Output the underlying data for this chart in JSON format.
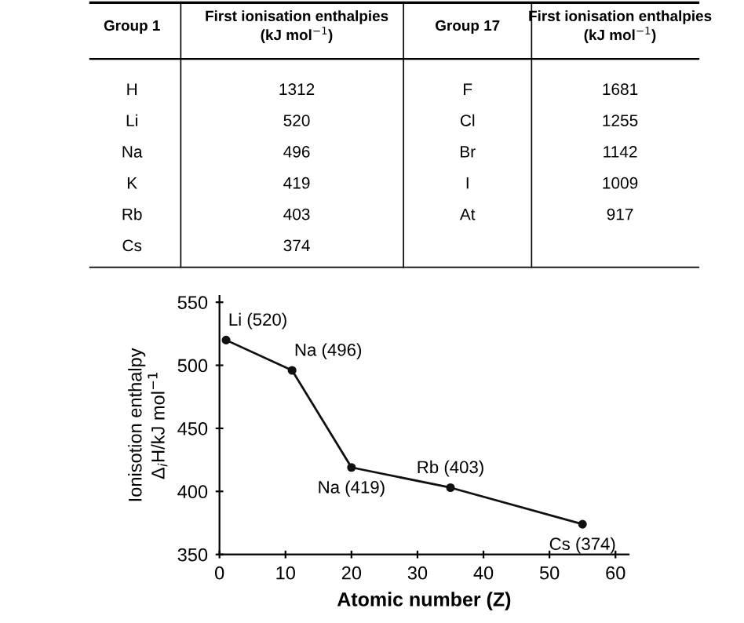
{
  "chart_data": [
    {
      "type": "other",
      "categories": [
        "Group 1",
        "First ionisation enthalpies\n(kJ mol$^{−1}$)",
        "Group 17",
        "First ionisation enthalpies\n(kJ mol$^{−1}$)"
      ],
      "annotations": [
        "H",
        "1312",
        "F",
        "1681",
        "Li",
        "520",
        "Cl",
        "1255",
        "Na",
        "496",
        "Br",
        "1142",
        "K",
        "419",
        "I",
        "1009",
        "Rb",
        "403",
        "At",
        "917",
        "Cs",
        "374"
      ]
    },
    {
      "type": "line",
      "xlabel": "Atomic number (Z)",
      "ylabel": "Ionisotion enthalpy\nΔ$_{i}$H/kJ mol$^{−1}$",
      "x": [
        1,
        11,
        20,
        35,
        55
      ],
      "series": [
        {
          "color": "#111111",
          "values": [
            520,
            496,
            419,
            403,
            374
          ],
          "value_labels": [
            "Li (520)",
            "Na (496)",
            "Na (419)",
            "Rb (403)",
            "Cs (374)"
          ]
        }
      ],
      "xlim": [
        0,
        62
      ],
      "ylim": [
        350,
        555
      ],
      "xticks": [
        0,
        10,
        20,
        30,
        40,
        50,
        60
      ],
      "yticks": [
        350,
        400,
        450,
        500,
        550
      ],
      "marker": "circle",
      "line_style": "solid",
      "grid": false,
      "legend": false
    }
  ]
}
